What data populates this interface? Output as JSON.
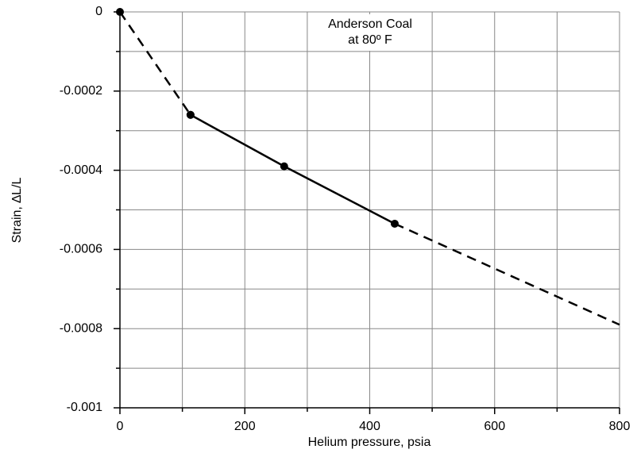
{
  "chart_data": {
    "type": "line",
    "xlabel": "Helium pressure, psia",
    "ylabel": "Strain, ∆L/L",
    "annotation": [
      "Anderson Coal",
      "at 80º F"
    ],
    "xlim": [
      0,
      800
    ],
    "ylim": [
      -0.001,
      0
    ],
    "xticks": [
      0,
      200,
      400,
      600,
      800
    ],
    "yticks": [
      0,
      -0.0002,
      -0.0004,
      -0.0006,
      -0.0008,
      -0.001
    ],
    "xminor": [
      100,
      300,
      500,
      700
    ],
    "yminor": [
      -0.0001,
      -0.0003,
      -0.0005,
      -0.0007,
      -0.0009
    ],
    "grid": true,
    "series": [
      {
        "color": "#000000",
        "dashed": true,
        "markers": true,
        "x": [
          0,
          113
        ],
        "values": [
          0,
          -0.00026
        ]
      },
      {
        "color": "#000000",
        "dashed": false,
        "markers": true,
        "x": [
          113,
          263,
          440
        ],
        "values": [
          -0.00026,
          -0.00039,
          -0.000535
        ]
      },
      {
        "color": "#000000",
        "dashed": true,
        "markers": false,
        "x": [
          440,
          800
        ],
        "values": [
          -0.000535,
          -0.00079
        ]
      }
    ]
  }
}
